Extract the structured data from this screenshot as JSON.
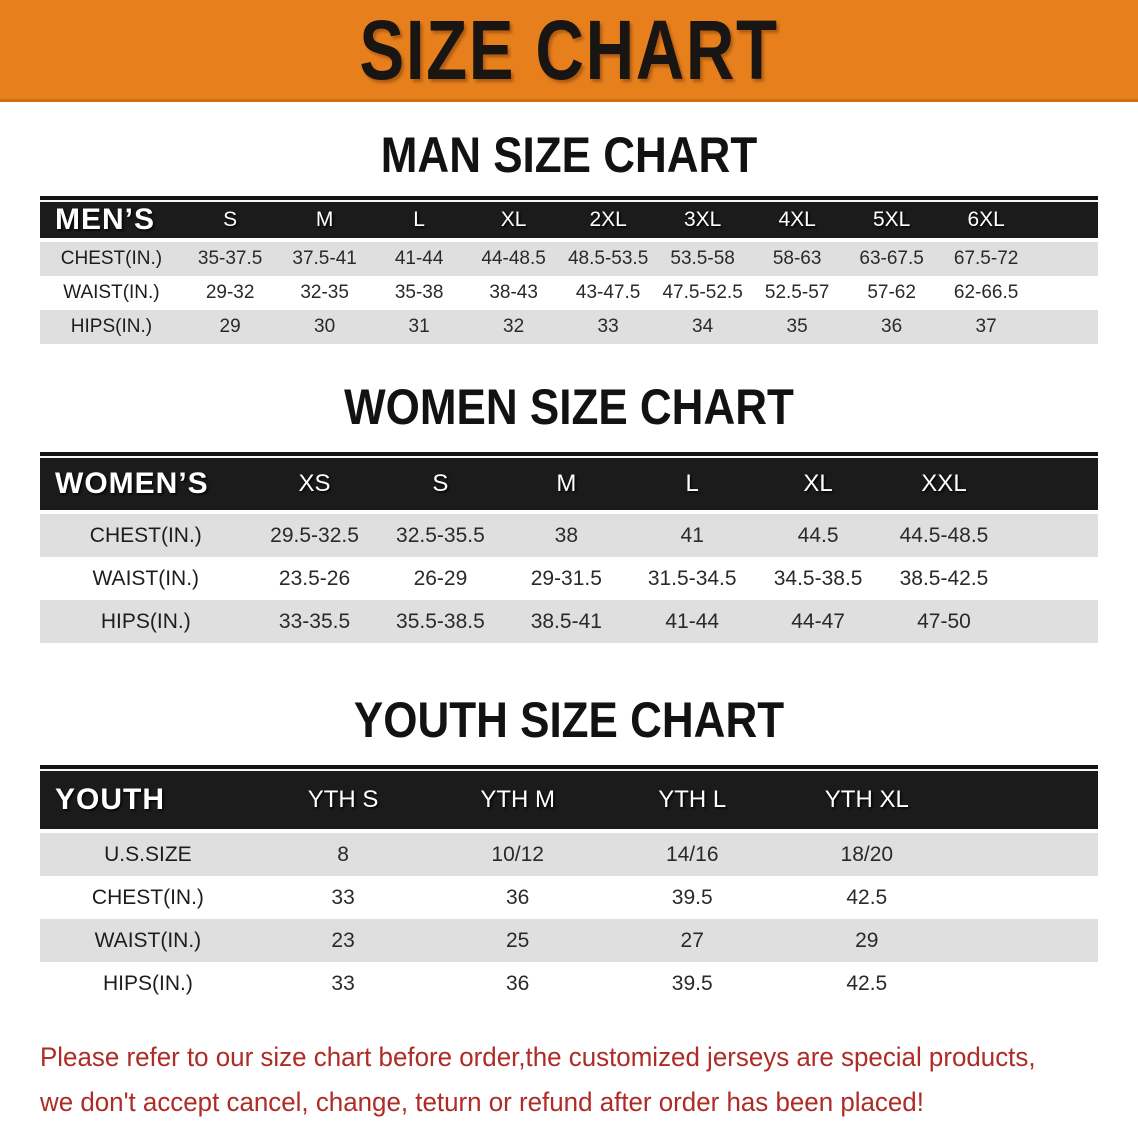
{
  "banner": {
    "title": "SIZE CHART"
  },
  "colors": {
    "banner_bg": "#E67F1C",
    "table_header_bg": "#1B1B1B",
    "row_stripe": "#DFDFDF",
    "notice_text": "#AE2B26"
  },
  "sections": [
    {
      "id": "men",
      "heading": "MAN SIZE CHART",
      "table": {
        "corner": "MEN’S",
        "columns": [
          "S",
          "M",
          "L",
          "XL",
          "2XL",
          "3XL",
          "4XL",
          "5XL",
          "6XL"
        ],
        "rows": [
          {
            "label": "CHEST(IN.)",
            "values": [
              "35-37.5",
              "37.5-41",
              "41-44",
              "44-48.5",
              "48.5-53.5",
              "53.5-58",
              "58-63",
              "63-67.5",
              "67.5-72"
            ]
          },
          {
            "label": "WAIST(IN.)",
            "values": [
              "29-32",
              "32-35",
              "35-38",
              "38-43",
              "43-47.5",
              "47.5-52.5",
              "52.5-57",
              "57-62",
              "62-66.5"
            ]
          },
          {
            "label": "HIPS(IN.)",
            "values": [
              "29",
              "30",
              "31",
              "32",
              "33",
              "34",
              "35",
              "36",
              "37"
            ]
          }
        ]
      }
    },
    {
      "id": "women",
      "heading": "WOMEN SIZE CHART",
      "table": {
        "corner": "WOMEN’S",
        "columns": [
          "XS",
          "S",
          "M",
          "L",
          "XL",
          "XXL"
        ],
        "rows": [
          {
            "label": "CHEST(IN.)",
            "values": [
              "29.5-32.5",
              "32.5-35.5",
              "38",
              "41",
              "44.5",
              "44.5-48.5"
            ]
          },
          {
            "label": "WAIST(IN.)",
            "values": [
              "23.5-26",
              "26-29",
              "29-31.5",
              "31.5-34.5",
              "34.5-38.5",
              "38.5-42.5"
            ]
          },
          {
            "label": "HIPS(IN.)",
            "values": [
              "33-35.5",
              "35.5-38.5",
              "38.5-41",
              "41-44",
              "44-47",
              "47-50"
            ]
          }
        ]
      }
    },
    {
      "id": "youth",
      "heading": "YOUTH SIZE CHART",
      "table": {
        "corner": "YOUTH",
        "columns": [
          "YTH S",
          "YTH M",
          "YTH L",
          "YTH XL"
        ],
        "rows": [
          {
            "label": "U.S.SIZE",
            "values": [
              "8",
              "10/12",
              "14/16",
              "18/20"
            ]
          },
          {
            "label": "CHEST(IN.)",
            "values": [
              "33",
              "36",
              "39.5",
              "42.5"
            ]
          },
          {
            "label": "WAIST(IN.)",
            "values": [
              "23",
              "25",
              "27",
              "29"
            ]
          },
          {
            "label": "HIPS(IN.)",
            "values": [
              "33",
              "36",
              "39.5",
              "42.5"
            ]
          }
        ]
      }
    }
  ],
  "notice": {
    "line1": "Please refer to our size chart before order,the customized jerseys are special products,",
    "line2": "we don't accept cancel, change, teturn or refund after order has been placed!"
  }
}
